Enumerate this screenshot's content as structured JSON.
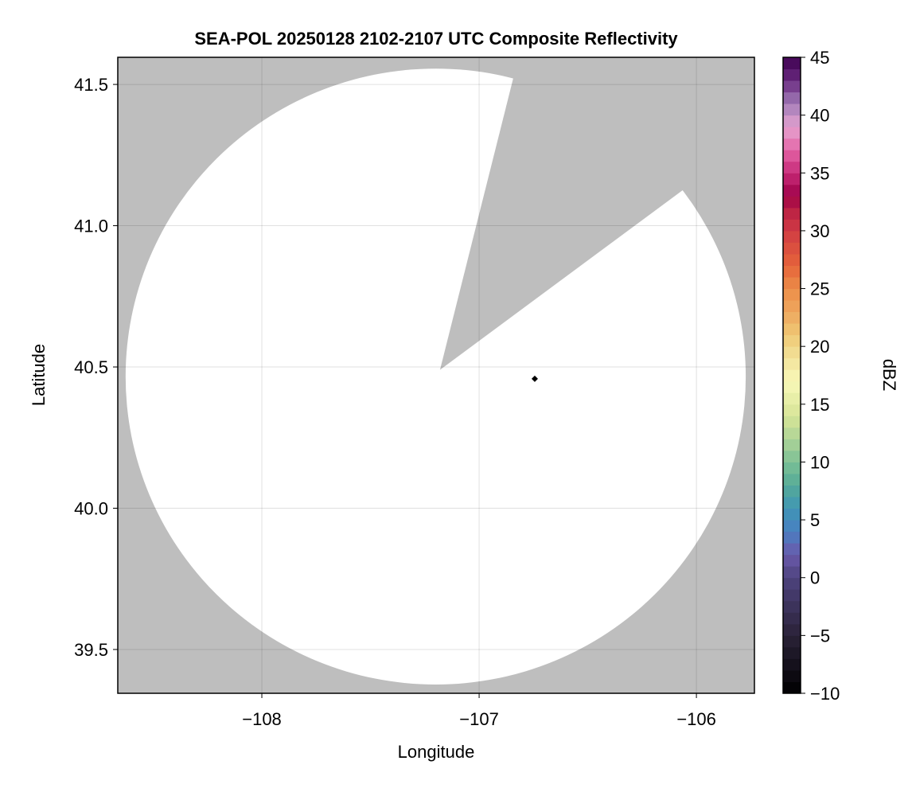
{
  "chart_data": {
    "type": "heatmap",
    "title": "SEA-POL 20250128 2102-2107 UTC Composite Reflectivity",
    "xlabel": "Longitude",
    "ylabel": "Latitude",
    "xlim": [
      -108.663,
      -105.733
    ],
    "ylim": [
      39.345,
      41.596
    ],
    "xticks": [
      -108,
      -107,
      -106
    ],
    "xtick_labels": [
      "−108",
      "−107",
      "−106"
    ],
    "yticks": [
      39.5,
      40.0,
      40.5,
      41.0,
      41.5
    ],
    "ytick_labels": [
      "39.5",
      "40.0",
      "40.5",
      "41.0",
      "41.5"
    ],
    "grid": true,
    "missing_color": "#bebebe",
    "radar_coverage": {
      "center_lon": -107.2,
      "center_lat": 40.466,
      "radius_lon": 1.427,
      "radius_lat": 1.09
    },
    "blocked_sector": {
      "apex": [
        -107.18,
        40.49
      ],
      "ray1": [
        -106.842,
        41.525
      ],
      "ray2": [
        -106.066,
        41.124
      ]
    },
    "marker": {
      "lon": -106.744,
      "lat": 40.458,
      "color": "#000000"
    },
    "colorbar": {
      "label": "dBZ",
      "range": [
        -10,
        45
      ],
      "step": 1,
      "ticks": [
        -10,
        -5,
        0,
        5,
        10,
        15,
        20,
        25,
        30,
        35,
        40,
        45
      ],
      "tick_labels": [
        "−10",
        "−5",
        "0",
        "5",
        "10",
        "15",
        "20",
        "25",
        "30",
        "35",
        "40",
        "45"
      ],
      "stops": [
        [
          -10,
          "#000000"
        ],
        [
          -5,
          "#2a2238"
        ],
        [
          0,
          "#4e437e"
        ],
        [
          2,
          "#6a5aab"
        ],
        [
          4,
          "#4a7fc2"
        ],
        [
          6,
          "#3f96b5"
        ],
        [
          8,
          "#55aa98"
        ],
        [
          10,
          "#7cc095"
        ],
        [
          12,
          "#aed497"
        ],
        [
          14,
          "#d7e597"
        ],
        [
          17,
          "#f8f8b8"
        ],
        [
          19,
          "#f2e29a"
        ],
        [
          21,
          "#efc874"
        ],
        [
          23,
          "#eea75e"
        ],
        [
          25,
          "#ec8d48"
        ],
        [
          27,
          "#e5643a"
        ],
        [
          30,
          "#d03c44"
        ],
        [
          32,
          "#b81d44"
        ],
        [
          33,
          "#9e0048"
        ],
        [
          35,
          "#c72a78"
        ],
        [
          37,
          "#e465a6"
        ],
        [
          39,
          "#e5a3d0"
        ],
        [
          41,
          "#a27cb8"
        ],
        [
          43,
          "#6a2a80"
        ],
        [
          45,
          "#3e0050"
        ]
      ]
    }
  }
}
